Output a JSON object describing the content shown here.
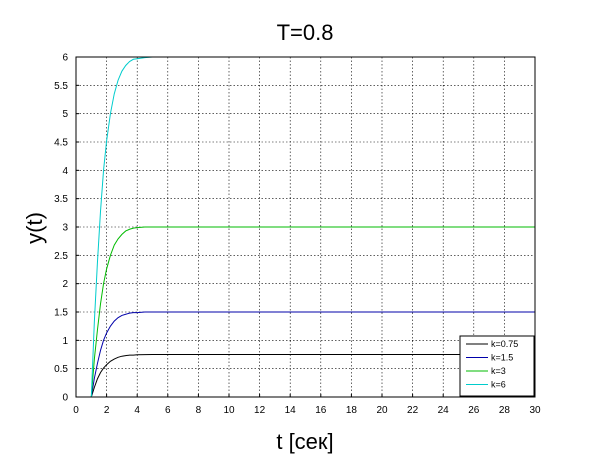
{
  "chart_data": {
    "type": "line",
    "title": "T=0.8",
    "xlabel": "t [сек]",
    "ylabel": "y(t)",
    "xlim": [
      0,
      30
    ],
    "ylim": [
      0,
      6
    ],
    "xticks": [
      0,
      2,
      4,
      6,
      8,
      10,
      12,
      14,
      16,
      18,
      20,
      22,
      24,
      26,
      28,
      30
    ],
    "yticks": [
      0,
      0.5,
      1,
      1.5,
      2,
      2.5,
      3,
      3.5,
      4,
      4.5,
      5,
      5.5,
      6
    ],
    "grid": true,
    "legend_position": "bottom-right",
    "x": [
      0,
      1,
      1.2,
      1.4,
      1.6,
      1.8,
      2,
      2.25,
      2.5,
      2.75,
      3,
      3.25,
      3.5,
      3.75,
      4,
      4.5,
      5,
      5.5,
      6,
      7,
      8,
      10,
      15,
      20,
      25,
      30
    ],
    "series": [
      {
        "name": "k=0.75",
        "color": "#000000",
        "values": [
          0,
          0,
          0.17,
          0.32,
          0.43,
          0.51,
          0.57,
          0.63,
          0.67,
          0.7,
          0.72,
          0.73,
          0.74,
          0.74,
          0.745,
          0.748,
          0.749,
          0.75,
          0.75,
          0.75,
          0.75,
          0.75,
          0.75,
          0.75,
          0.75,
          0.75
        ]
      },
      {
        "name": "k=1.5",
        "color": "#0000aa",
        "values": [
          0,
          0,
          0.33,
          0.59,
          0.82,
          1.0,
          1.13,
          1.25,
          1.34,
          1.4,
          1.44,
          1.46,
          1.48,
          1.49,
          1.49,
          1.5,
          1.5,
          1.5,
          1.5,
          1.5,
          1.5,
          1.5,
          1.5,
          1.5,
          1.5,
          1.5
        ]
      },
      {
        "name": "k=3",
        "color": "#00bb00",
        "values": [
          0,
          0,
          0.67,
          1.18,
          1.64,
          2.0,
          2.26,
          2.5,
          2.68,
          2.79,
          2.87,
          2.93,
          2.96,
          2.98,
          2.99,
          3.0,
          3.0,
          3.0,
          3.0,
          3.0,
          3.0,
          3.0,
          3.0,
          3.0,
          3.0,
          3.0
        ]
      },
      {
        "name": "k=6",
        "color": "#00cccc",
        "values": [
          0,
          0,
          1.33,
          2.37,
          3.27,
          4.0,
          4.52,
          5.0,
          5.35,
          5.59,
          5.75,
          5.85,
          5.92,
          5.96,
          5.97,
          5.99,
          6.0,
          6.0,
          6.0,
          6.0,
          6.0,
          6.0,
          6.0,
          6.0,
          6.0,
          6.0
        ]
      }
    ]
  }
}
